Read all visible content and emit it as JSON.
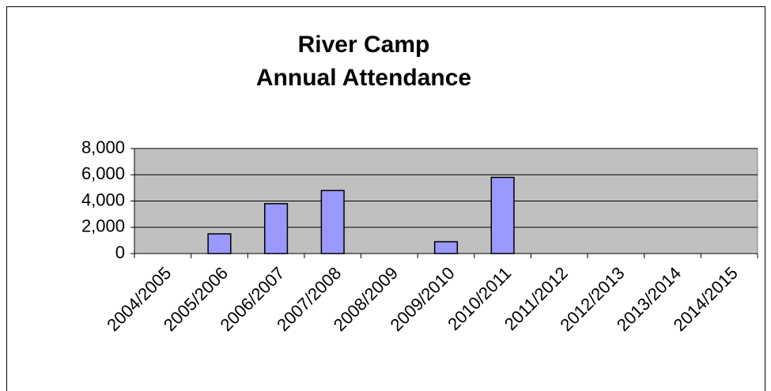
{
  "chart_data": {
    "type": "bar",
    "title": [
      "River Camp",
      "Annual Attendance"
    ],
    "categories": [
      "2004/2005",
      "2005/2006",
      "2006/2007",
      "2007/2008",
      "2008/2009",
      "2009/2010",
      "2010/2011",
      "2011/2012",
      "2012/2013",
      "2013/2014",
      "2014/2015"
    ],
    "values": [
      null,
      1500,
      3800,
      4800,
      null,
      900,
      5800,
      null,
      null,
      null,
      null
    ],
    "color": "#9999ff",
    "ylim": [
      0,
      8000
    ],
    "yticks": [
      0,
      {
        "value": 2000,
        "label": "2,000"
      },
      {
        "value": 4000,
        "label": "4,000"
      },
      {
        "value": 6000,
        "label": "6,000"
      },
      {
        "value": 8000,
        "label": "8,000"
      }
    ],
    "grid": true
  }
}
